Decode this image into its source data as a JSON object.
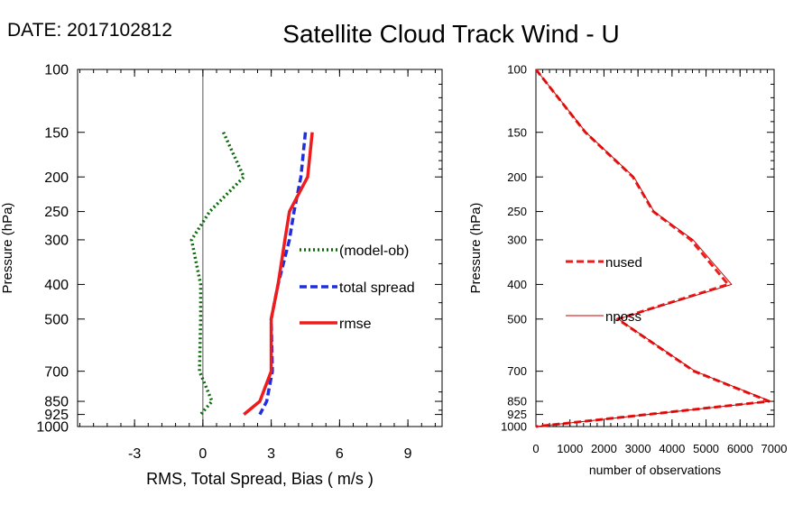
{
  "header": {
    "date_label": "DATE: 2017102812",
    "title": "Satellite Cloud Track Wind - U"
  },
  "colors": {
    "bias": "#0b6b0b",
    "spread": "#1f2fe0",
    "rmse": "#ee1c1c",
    "nused": "#ee1c1c",
    "nposs": "#cc0000"
  },
  "chart_data": [
    {
      "type": "line",
      "orientation": "vertical-profile",
      "xlabel": "RMS, Total Spread, Bias ( m/s )",
      "ylabel": "Pressure (hPa)",
      "xlim": [
        -5.5,
        10.5
      ],
      "ylim": [
        1000,
        100
      ],
      "yscale": "log",
      "xticks": [
        -3,
        0,
        3,
        6,
        9
      ],
      "xtick_labels": [
        "-3",
        "0",
        "3",
        "6",
        "9"
      ],
      "yticks": [
        100,
        150,
        200,
        250,
        300,
        400,
        500,
        700,
        850,
        925,
        1000
      ],
      "ytick_labels": [
        "100",
        "150",
        "200",
        "250",
        "300",
        "400",
        "500",
        "700",
        "850",
        "925",
        "1000"
      ],
      "zero_line": true,
      "legend_position": "right-center",
      "series": [
        {
          "name": "(model-ob)",
          "style": "dotted",
          "pressure": [
            150,
            200,
            250,
            300,
            400,
            500,
            700,
            850,
            925
          ],
          "values": [
            0.9,
            1.8,
            0.3,
            -0.5,
            -0.1,
            -0.1,
            -0.15,
            0.4,
            -0.1
          ]
        },
        {
          "name": "total spread",
          "style": "dashed",
          "pressure": [
            150,
            200,
            250,
            300,
            400,
            500,
            700,
            850,
            925
          ],
          "values": [
            4.5,
            4.3,
            4.0,
            3.8,
            3.3,
            3.0,
            3.05,
            2.8,
            2.5
          ]
        },
        {
          "name": "rmse",
          "style": "solid",
          "pressure": [
            150,
            200,
            250,
            300,
            400,
            500,
            700,
            850,
            925
          ],
          "values": [
            4.8,
            4.6,
            3.8,
            3.6,
            3.3,
            3.0,
            3.0,
            2.5,
            1.8
          ]
        }
      ]
    },
    {
      "type": "line",
      "orientation": "vertical-profile",
      "xlabel": "number of observations",
      "ylabel": "Pressure (hPa)",
      "xlim": [
        0,
        7000
      ],
      "ylim": [
        1000,
        100
      ],
      "yscale": "log",
      "xticks": [
        0,
        1000,
        2000,
        3000,
        4000,
        5000,
        6000,
        7000
      ],
      "xtick_labels": [
        "0",
        "1000",
        "2000",
        "3000",
        "4000",
        "5000",
        "6000",
        "7000"
      ],
      "yticks": [
        100,
        150,
        200,
        250,
        300,
        400,
        500,
        700,
        850,
        925,
        1000
      ],
      "ytick_labels": [
        "100",
        "150",
        "200",
        "250",
        "300",
        "400",
        "500",
        "700",
        "850",
        "925",
        "1000"
      ],
      "legend_position": "left-center",
      "series": [
        {
          "name": "nused",
          "style": "dashed",
          "pressure": [
            100,
            150,
            200,
            250,
            300,
            400,
            500,
            700,
            850,
            1000
          ],
          "values": [
            0,
            1450,
            2850,
            3450,
            4550,
            5650,
            2400,
            4650,
            6850,
            0
          ]
        },
        {
          "name": "nposs",
          "style": "thin-solid",
          "pressure": [
            100,
            150,
            200,
            250,
            300,
            400,
            500,
            700,
            850,
            1000
          ],
          "values": [
            0,
            1470,
            2880,
            3470,
            4620,
            5750,
            2420,
            4680,
            6900,
            0
          ]
        }
      ]
    }
  ]
}
